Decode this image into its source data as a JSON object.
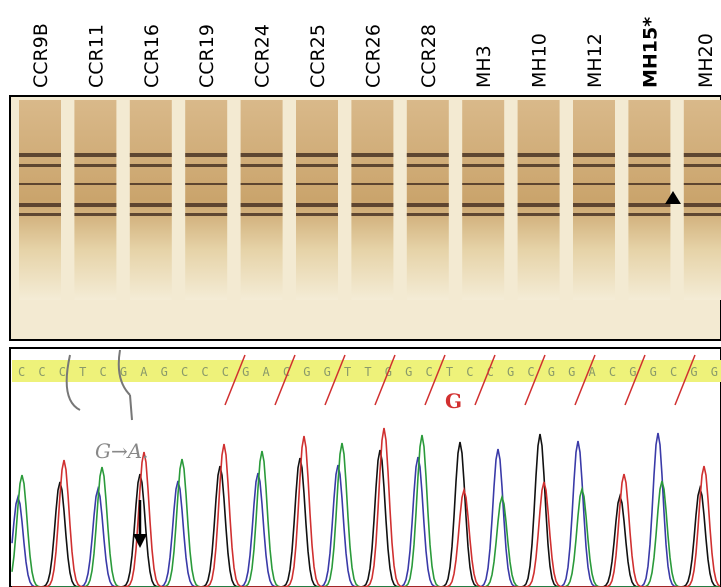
{
  "lanes": [
    {
      "label": "CCR9B"
    },
    {
      "label": "CCR11"
    },
    {
      "label": "CCR16"
    },
    {
      "label": "CCR19"
    },
    {
      "label": "CCR24"
    },
    {
      "label": "CCR25"
    },
    {
      "label": "CCR26"
    },
    {
      "label": "CCR28"
    },
    {
      "label": "MH3"
    },
    {
      "label": "MH10"
    },
    {
      "label": "MH12"
    },
    {
      "label": "MH15*",
      "bold": true
    },
    {
      "label": "MH20"
    }
  ],
  "chromatogram": {
    "sequence": "CCCTCGAGCCCGACGGTTGGCTCCGCGGACGGCGG",
    "annotation": "G→A.",
    "corrected_base": "G"
  }
}
